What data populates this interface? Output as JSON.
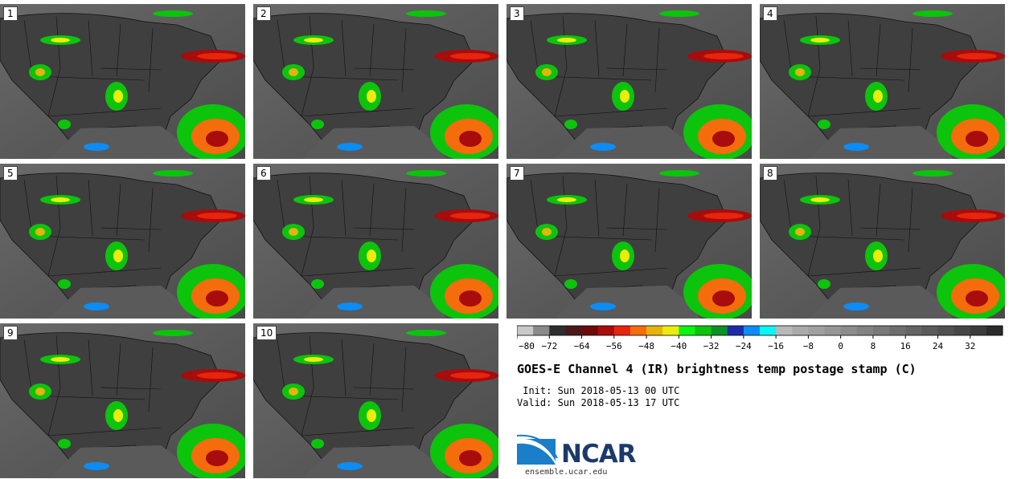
{
  "panels": [
    {
      "label": "1"
    },
    {
      "label": "2"
    },
    {
      "label": "3"
    },
    {
      "label": "4"
    },
    {
      "label": "5"
    },
    {
      "label": "6"
    },
    {
      "label": "7"
    },
    {
      "label": "8"
    },
    {
      "label": "9"
    },
    {
      "label": "10"
    }
  ],
  "colorbar": {
    "colors": [
      "#c8c8c8",
      "#8a8a8a",
      "#2e2e2e",
      "#4a1a1a",
      "#6e0a0a",
      "#a80c0c",
      "#e8240c",
      "#f46c0c",
      "#e4b40c",
      "#ecec0c",
      "#0cf40c",
      "#0cc40c",
      "#0c9024",
      "#1c2ca8",
      "#0c8cf4",
      "#0cf4f4",
      "#b8b8b8",
      "#aaaaaa",
      "#a0a0a0",
      "#969696",
      "#8c8c8c",
      "#828282",
      "#787878",
      "#6e6e6e",
      "#646464",
      "#5a5a5a",
      "#505050",
      "#464646",
      "#3c3c3c",
      "#2a2a2a"
    ],
    "ticks": [
      "−80",
      "−72",
      "−64",
      "−56",
      "−48",
      "−40",
      "−32",
      "−24",
      "−16",
      "−8",
      "0",
      "8",
      "16",
      "24",
      "32"
    ]
  },
  "title": "GOES-E Channel 4 (IR) brightness temp postage stamp (C)",
  "init": " Init: Sun 2018-05-13 00 UTC",
  "valid": "Valid: Sun 2018-05-13 17 UTC",
  "logo": {
    "name": "NCAR",
    "url": "ensemble.ucar.edu"
  }
}
